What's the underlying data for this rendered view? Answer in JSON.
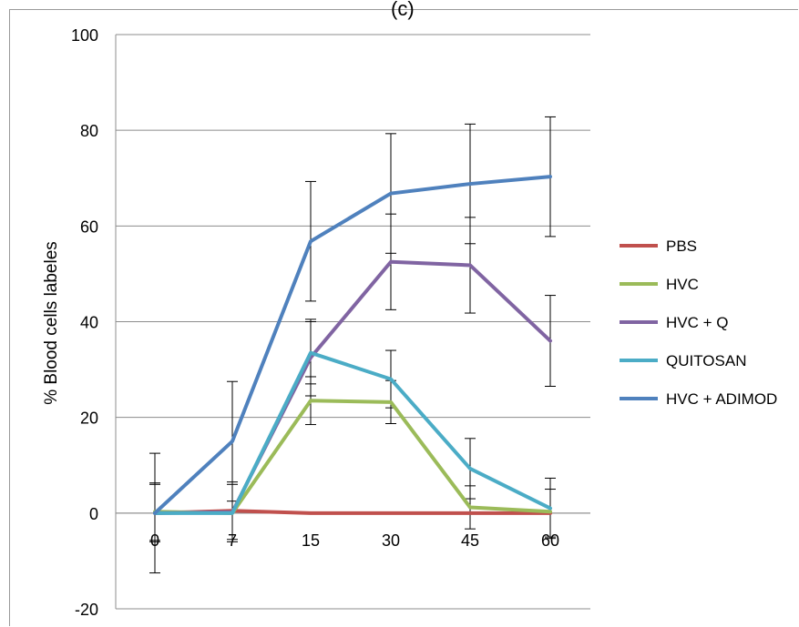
{
  "header": {
    "title_fragment": "(c)"
  },
  "chart_data": {
    "type": "line",
    "title": "",
    "xlabel": "",
    "ylabel": "% Blood cells labeles",
    "categories": [
      "0",
      "7",
      "15",
      "30",
      "45",
      "60"
    ],
    "ylim": [
      -20,
      100
    ],
    "yticks": [
      "100",
      "80",
      "60",
      "40",
      "20",
      "0",
      "-20"
    ],
    "grid": true,
    "legend_position": "right",
    "series": [
      {
        "name": "PBS",
        "color": "#c0504d",
        "values": [
          0,
          0.5,
          0,
          0,
          0,
          0
        ],
        "err": [
          6,
          6,
          0,
          0,
          0,
          5
        ]
      },
      {
        "name": "HVC",
        "color": "#9bbb59",
        "values": [
          0.3,
          0,
          23.5,
          23.2,
          1.2,
          0.3
        ],
        "err": [
          6,
          6,
          5,
          4.5,
          4.5,
          0
        ]
      },
      {
        "name": "HVC + Q",
        "color": "#8064a2",
        "values": [
          0,
          0.2,
          32.5,
          52.5,
          51.8,
          36
        ],
        "err": [
          0,
          0,
          8,
          10,
          10,
          9.5
        ]
      },
      {
        "name": "QUITOSAN",
        "color": "#4bacc6",
        "values": [
          0,
          0,
          33.5,
          28,
          9.3,
          1
        ],
        "err": [
          0,
          0,
          6.5,
          6,
          6.3,
          6.3
        ]
      },
      {
        "name": "HVC + ADIMOD",
        "color": "#4f81bd",
        "values": [
          0,
          15,
          56.8,
          66.8,
          68.8,
          70.3
        ],
        "err": [
          12.5,
          12.5,
          12.5,
          12.5,
          12.5,
          12.5
        ]
      }
    ]
  }
}
